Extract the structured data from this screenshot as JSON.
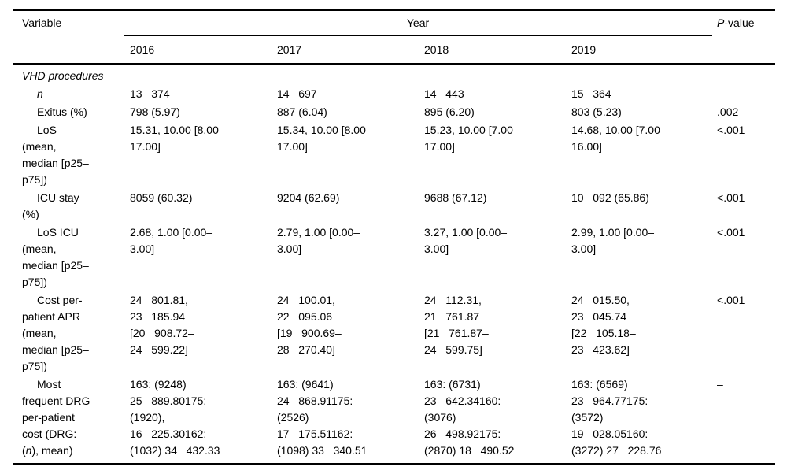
{
  "header": {
    "variable": "Variable",
    "year_group": "Year",
    "years": [
      "2016",
      "2017",
      "2018",
      "2019"
    ],
    "pvalue_p": "P",
    "pvalue_suffix": "-value"
  },
  "section_label": "VHD procedures",
  "rows": [
    {
      "label": "n",
      "values": [
        "13   374",
        "14   697",
        "14   443",
        "15   364"
      ],
      "p": ""
    },
    {
      "label": "Exitus (%)",
      "values": [
        "798 (5.97)",
        "887 (6.04)",
        "895 (6.20)",
        "803 (5.23)"
      ],
      "p": ".002"
    },
    {
      "label": "LoS\n(mean,\nmedian [p25–\np75])",
      "values": [
        "15.31, 10.00 [8.00–\n17.00]",
        "15.34, 10.00 [8.00–\n17.00]",
        "15.23, 10.00 [7.00–\n17.00]",
        "14.68, 10.00 [7.00–\n16.00]"
      ],
      "p": "<.001"
    },
    {
      "label": "ICU stay\n(%)",
      "values": [
        "8059 (60.32)",
        "9204 (62.69)",
        "9688 (67.12)",
        "10   092 (65.86)"
      ],
      "p": "<.001"
    },
    {
      "label": "LoS ICU\n(mean,\nmedian [p25–\np75])",
      "values": [
        "2.68, 1.00 [0.00–\n3.00]",
        "2.79, 1.00 [0.00–\n3.00]",
        "3.27, 1.00 [0.00–\n3.00]",
        "2.99, 1.00 [0.00–\n3.00]"
      ],
      "p": "<.001"
    },
    {
      "label": "Cost per-\npatient APR\n(mean,\nmedian [p25–\np75])",
      "values": [
        "24   801.81,\n23   185.94\n[20   908.72–\n24   599.22]",
        "24   100.01,\n22   095.06\n[19   900.69–\n28   270.40]",
        "24   112.31,\n21   761.87\n[21   761.87–\n24   599.75]",
        "24   015.50,\n23   045.74\n[22   105.18–\n23   423.62]"
      ],
      "p": "<.001"
    },
    {
      "label_parts": [
        "Most\nfrequent DRG\nper-patient\ncost (DRG:\n(",
        "n",
        "), mean)"
      ],
      "values": [
        "163: (9248)\n25   889.80175:\n(1920),\n16   225.30162:\n(1032) 34   432.33",
        "163: (9641)\n24   868.91175:\n(2526)\n17   175.51162:\n(1098) 33   340.51",
        "163: (6731)\n23   642.34160:\n(3076)\n26   498.92175:\n(2870) 18   490.52",
        "163: (6569)\n23   964.77175:\n(3572)\n19   028.05160:\n(3272) 27   228.76"
      ],
      "p": "–"
    }
  ]
}
